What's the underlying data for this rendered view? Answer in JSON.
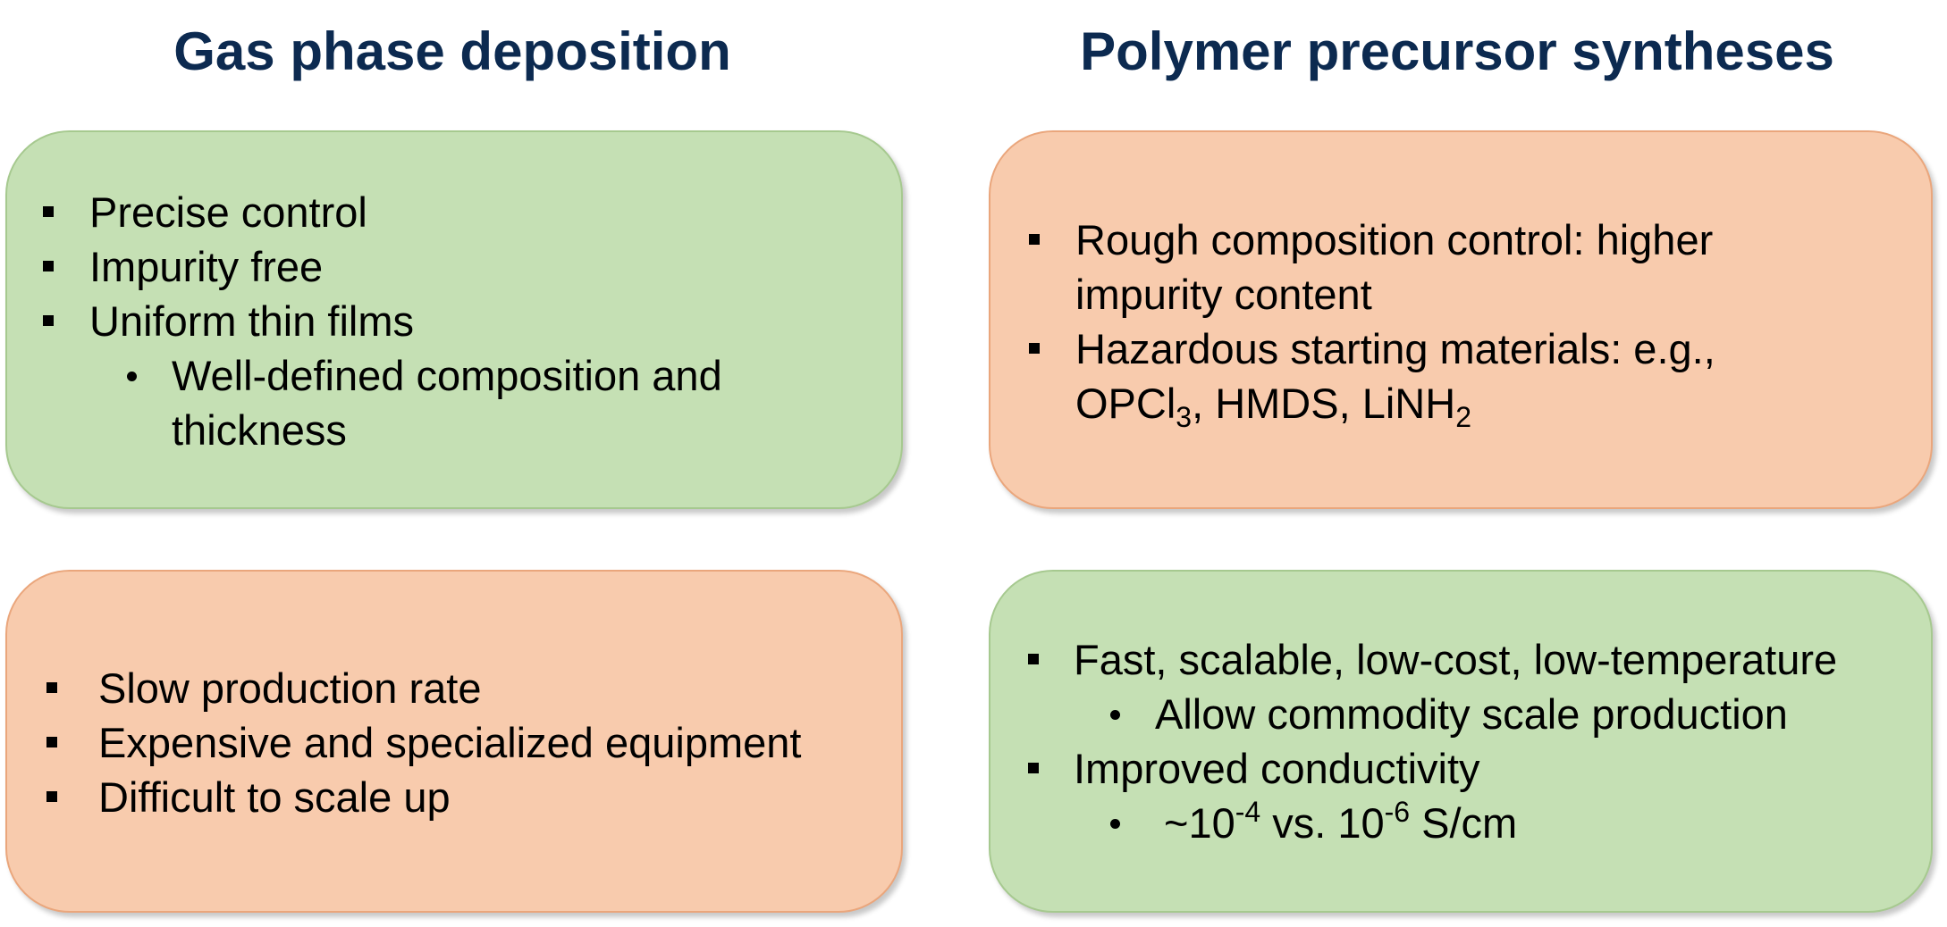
{
  "headings": {
    "left": "Gas phase deposition",
    "right": "Polymer precursor syntheses"
  },
  "colors": {
    "heading": "#0c2a50",
    "pro_box": "#c5e0b4",
    "con_box": "#f8cbad"
  },
  "gas_phase": {
    "advantages": {
      "items": [
        "Precise control",
        "Impurity free",
        "Uniform thin films"
      ],
      "sub_items": [
        "Well-defined composition and",
        "thickness"
      ]
    },
    "disadvantages": {
      "items": [
        "Slow production rate",
        "Expensive and specialized equipment",
        "Difficult to scale up"
      ]
    }
  },
  "polymer_precursor": {
    "disadvantages": {
      "item1": [
        "Rough composition control: higher",
        "impurity content"
      ],
      "item2_line1": "Hazardous starting materials: e.g.,",
      "item2_line2": {
        "p1": "OPCl",
        "s1": "3",
        "p2": ", HMDS, LiNH",
        "s2": "2"
      }
    },
    "advantages": {
      "item1": "Fast, scalable, low-cost, low-temperature",
      "item1_sub": "Allow commodity scale production",
      "item2": "Improved conductivity",
      "item2_sub": {
        "p1": "~10",
        "e1": "-4",
        "p2": " vs. 10",
        "e2": "-6",
        "p3": " S/cm"
      }
    }
  }
}
